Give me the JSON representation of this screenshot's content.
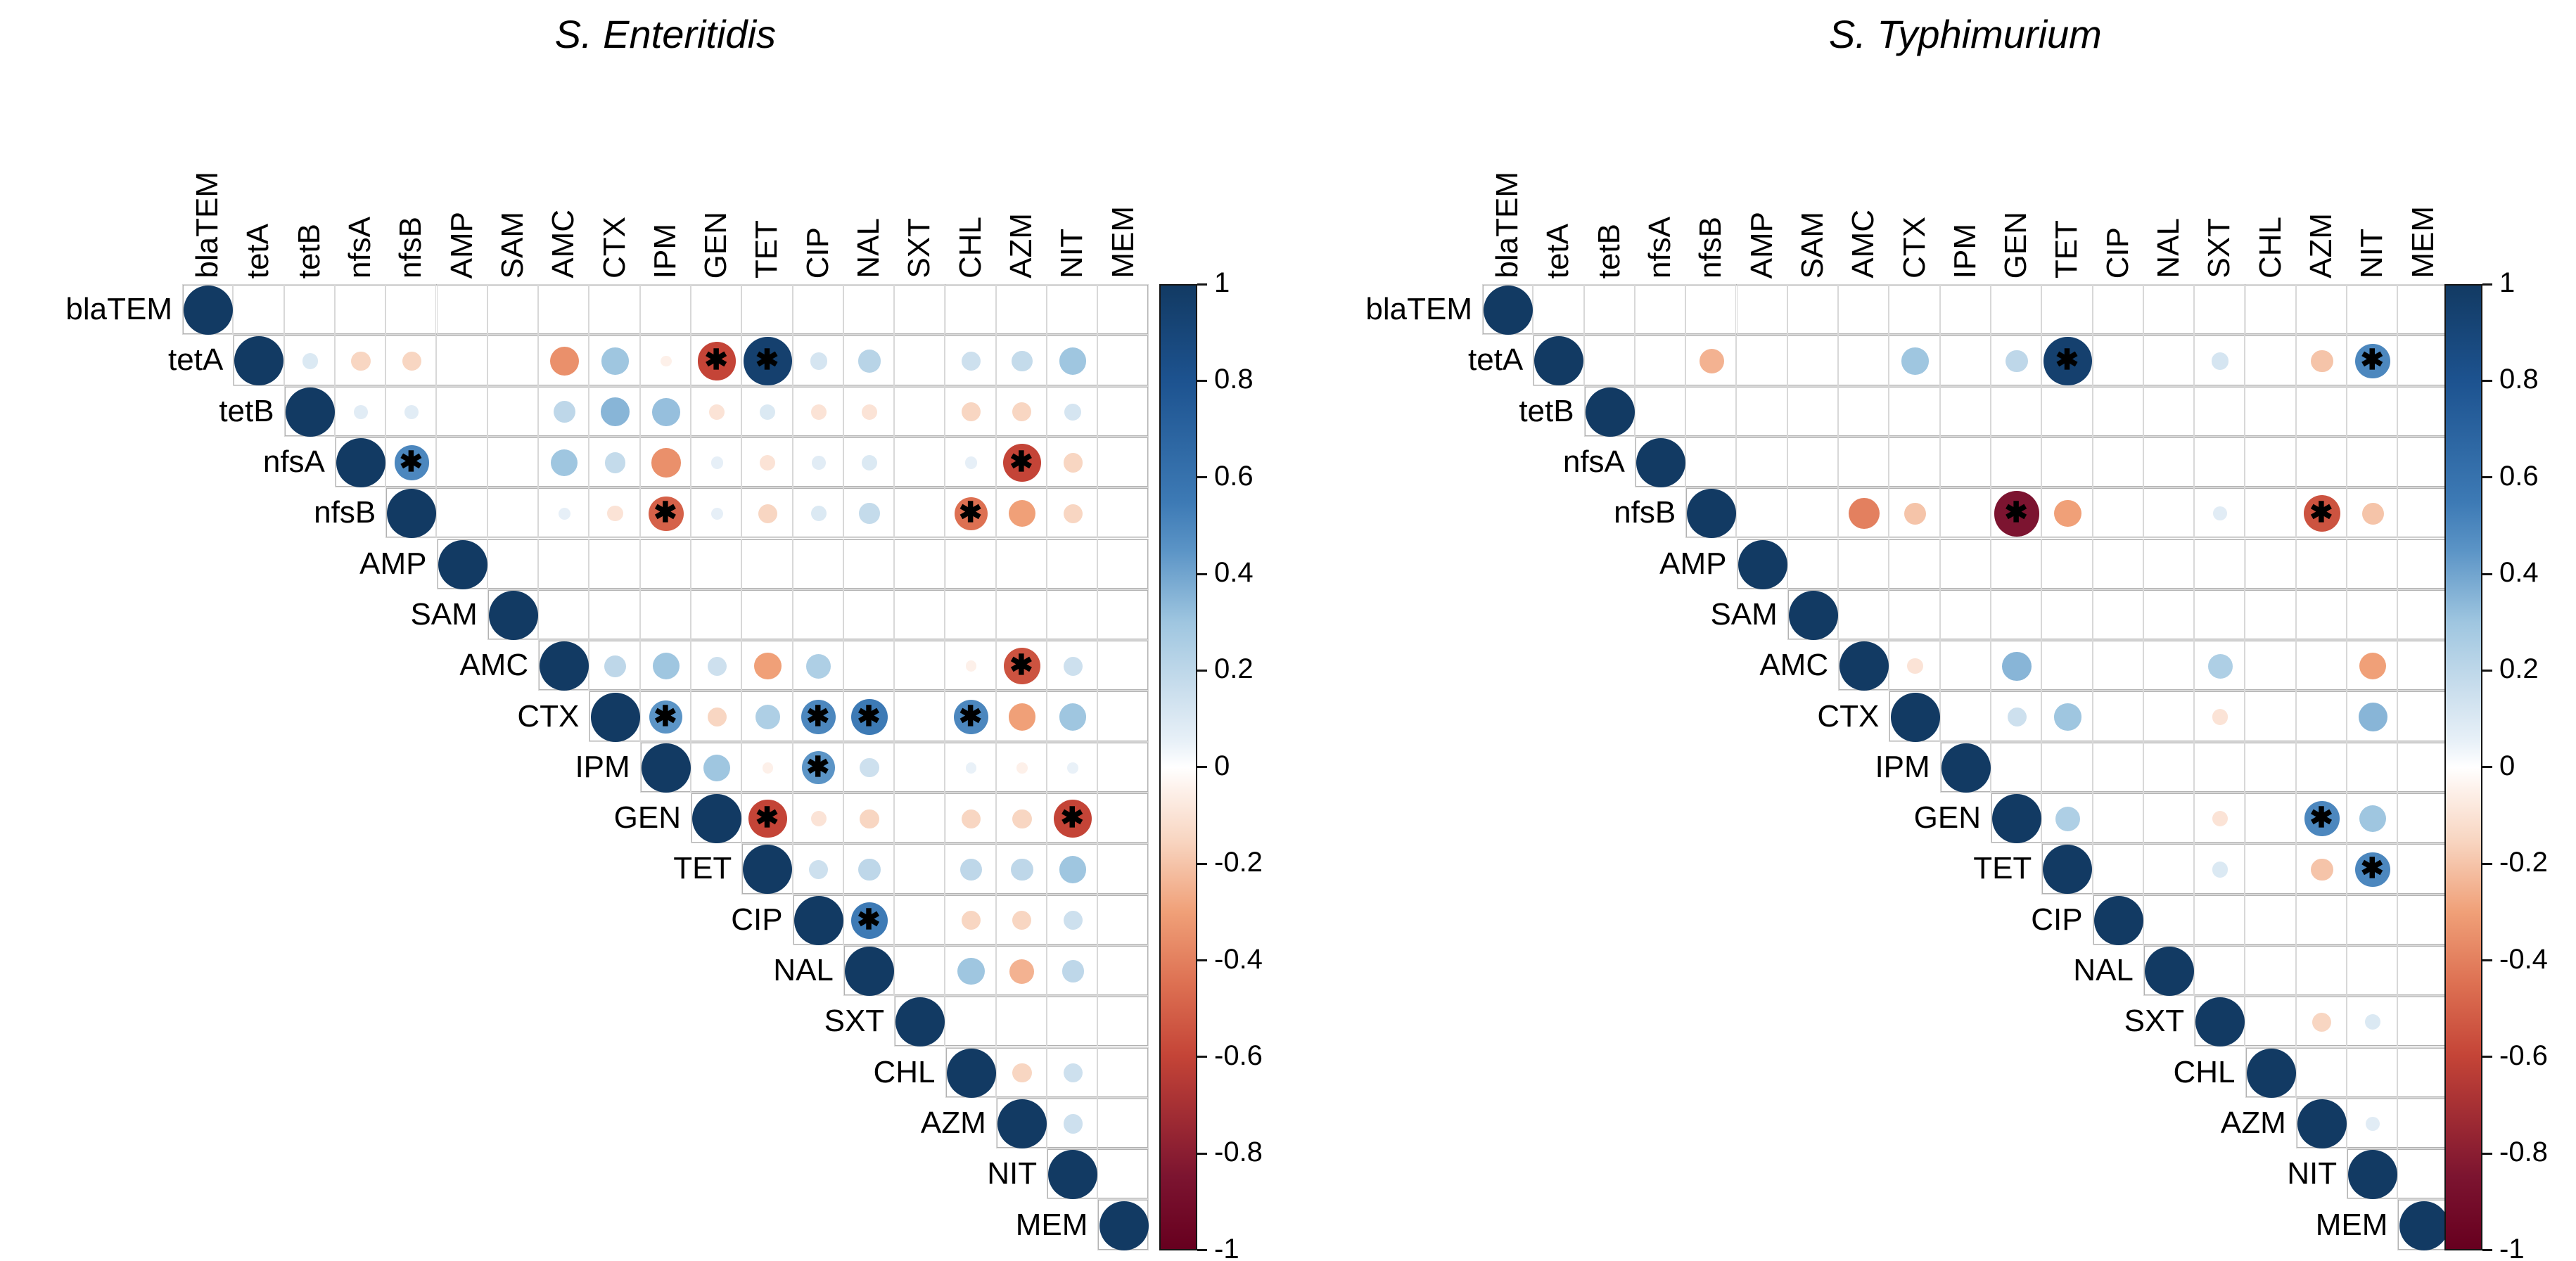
{
  "chart_data": [
    {
      "type": "heatmap",
      "subtype": "correlation-matrix-upper-triangle",
      "title": "S. Enteritidis",
      "variables": [
        "blaTEM",
        "tetA",
        "tetB",
        "nfsA",
        "nfsB",
        "AMP",
        "SAM",
        "AMC",
        "CTX",
        "IPM",
        "GEN",
        "TET",
        "CIP",
        "NAL",
        "SXT",
        "CHL",
        "AZM",
        "NIT",
        "MEM"
      ],
      "diagonal_r": 1,
      "cells": [
        [
          "tetA",
          "tetB",
          0.1,
          0
        ],
        [
          "tetA",
          "nfsA",
          -0.15,
          0
        ],
        [
          "tetA",
          "nfsB",
          -0.15,
          0
        ],
        [
          "tetA",
          "AMC",
          -0.35,
          0
        ],
        [
          "tetA",
          "CTX",
          0.3,
          0
        ],
        [
          "tetA",
          "IPM",
          -0.05,
          0
        ],
        [
          "tetA",
          "GEN",
          -0.6,
          1
        ],
        [
          "tetA",
          "TET",
          0.95,
          1
        ],
        [
          "tetA",
          "CIP",
          0.12,
          0
        ],
        [
          "tetA",
          "NAL",
          0.22,
          0
        ],
        [
          "tetA",
          "CHL",
          0.15,
          0
        ],
        [
          "tetA",
          "AZM",
          0.18,
          0
        ],
        [
          "tetA",
          "NIT",
          0.3,
          0
        ],
        [
          "tetB",
          "nfsA",
          0.08,
          0
        ],
        [
          "tetB",
          "nfsB",
          0.08,
          0
        ],
        [
          "tetB",
          "AMC",
          0.2,
          0
        ],
        [
          "tetB",
          "CTX",
          0.35,
          0
        ],
        [
          "tetB",
          "IPM",
          0.32,
          0
        ],
        [
          "tetB",
          "GEN",
          -0.1,
          0
        ],
        [
          "tetB",
          "TET",
          0.1,
          0
        ],
        [
          "tetB",
          "CIP",
          -0.1,
          0
        ],
        [
          "tetB",
          "NAL",
          -0.1,
          0
        ],
        [
          "tetB",
          "CHL",
          -0.15,
          0
        ],
        [
          "tetB",
          "AZM",
          -0.15,
          0
        ],
        [
          "tetB",
          "NIT",
          0.12,
          0
        ],
        [
          "nfsA",
          "nfsB",
          0.5,
          1
        ],
        [
          "nfsA",
          "AMC",
          0.3,
          0
        ],
        [
          "nfsA",
          "CTX",
          0.18,
          0
        ],
        [
          "nfsA",
          "IPM",
          -0.35,
          0
        ],
        [
          "nfsA",
          "GEN",
          0.06,
          0
        ],
        [
          "nfsA",
          "TET",
          -0.1,
          0
        ],
        [
          "nfsA",
          "CIP",
          0.08,
          0
        ],
        [
          "nfsA",
          "NAL",
          0.1,
          0
        ],
        [
          "nfsA",
          "CHL",
          0.06,
          0
        ],
        [
          "nfsA",
          "AZM",
          -0.6,
          1
        ],
        [
          "nfsA",
          "NIT",
          -0.15,
          0
        ],
        [
          "nfsB",
          "AMC",
          0.06,
          0
        ],
        [
          "nfsB",
          "CTX",
          -0.1,
          0
        ],
        [
          "nfsB",
          "IPM",
          -0.5,
          1
        ],
        [
          "nfsB",
          "GEN",
          0.06,
          0
        ],
        [
          "nfsB",
          "TET",
          -0.15,
          0
        ],
        [
          "nfsB",
          "CIP",
          0.1,
          0
        ],
        [
          "nfsB",
          "NAL",
          0.18,
          0
        ],
        [
          "nfsB",
          "CHL",
          -0.45,
          1
        ],
        [
          "nfsB",
          "AZM",
          -0.3,
          0
        ],
        [
          "nfsB",
          "NIT",
          -0.15,
          0
        ],
        [
          "AMC",
          "CTX",
          0.2,
          0
        ],
        [
          "AMC",
          "IPM",
          0.3,
          0
        ],
        [
          "AMC",
          "GEN",
          0.15,
          0
        ],
        [
          "AMC",
          "TET",
          -0.3,
          0
        ],
        [
          "AMC",
          "CIP",
          0.25,
          0
        ],
        [
          "AMC",
          "CHL",
          -0.05,
          0
        ],
        [
          "AMC",
          "AZM",
          -0.55,
          1
        ],
        [
          "AMC",
          "NIT",
          0.15,
          0
        ],
        [
          "CTX",
          "IPM",
          0.45,
          1
        ],
        [
          "CTX",
          "GEN",
          -0.15,
          0
        ],
        [
          "CTX",
          "TET",
          0.25,
          0
        ],
        [
          "CTX",
          "CIP",
          0.5,
          1
        ],
        [
          "CTX",
          "NAL",
          0.55,
          1
        ],
        [
          "CTX",
          "CHL",
          0.5,
          1
        ],
        [
          "CTX",
          "AZM",
          -0.3,
          0
        ],
        [
          "CTX",
          "NIT",
          0.3,
          0
        ],
        [
          "IPM",
          "GEN",
          0.3,
          0
        ],
        [
          "IPM",
          "TET",
          -0.05,
          0
        ],
        [
          "IPM",
          "CIP",
          0.45,
          1
        ],
        [
          "IPM",
          "NAL",
          0.15,
          0
        ],
        [
          "IPM",
          "CHL",
          0.05,
          0
        ],
        [
          "IPM",
          "AZM",
          -0.05,
          0
        ],
        [
          "IPM",
          "NIT",
          0.05,
          0
        ],
        [
          "GEN",
          "TET",
          -0.6,
          1
        ],
        [
          "GEN",
          "CIP",
          -0.1,
          0
        ],
        [
          "GEN",
          "NAL",
          -0.15,
          0
        ],
        [
          "GEN",
          "CHL",
          -0.15,
          0
        ],
        [
          "GEN",
          "AZM",
          -0.15,
          0
        ],
        [
          "GEN",
          "NIT",
          -0.6,
          1
        ],
        [
          "TET",
          "CIP",
          0.15,
          0
        ],
        [
          "TET",
          "NAL",
          0.2,
          0
        ],
        [
          "TET",
          "CHL",
          0.2,
          0
        ],
        [
          "TET",
          "AZM",
          0.2,
          0
        ],
        [
          "TET",
          "NIT",
          0.3,
          0
        ],
        [
          "CIP",
          "NAL",
          0.55,
          1
        ],
        [
          "CIP",
          "CHL",
          -0.15,
          0
        ],
        [
          "CIP",
          "AZM",
          -0.15,
          0
        ],
        [
          "CIP",
          "NIT",
          0.15,
          0
        ],
        [
          "NAL",
          "CHL",
          0.3,
          0
        ],
        [
          "NAL",
          "AZM",
          -0.25,
          0
        ],
        [
          "NAL",
          "NIT",
          0.2,
          0
        ],
        [
          "CHL",
          "AZM",
          -0.15,
          0
        ],
        [
          "CHL",
          "NIT",
          0.15,
          0
        ],
        [
          "AZM",
          "NIT",
          0.15,
          0
        ]
      ]
    },
    {
      "type": "heatmap",
      "subtype": "correlation-matrix-upper-triangle",
      "title": "S. Typhimurium",
      "variables": [
        "blaTEM",
        "tetA",
        "tetB",
        "nfsA",
        "nfsB",
        "AMP",
        "SAM",
        "AMC",
        "CTX",
        "IPM",
        "GEN",
        "TET",
        "CIP",
        "NAL",
        "SXT",
        "CHL",
        "AZM",
        "NIT",
        "MEM"
      ],
      "diagonal_r": 1,
      "cells": [
        [
          "tetA",
          "nfsB",
          -0.25,
          0
        ],
        [
          "tetA",
          "CTX",
          0.3,
          0
        ],
        [
          "tetA",
          "GEN",
          0.2,
          0
        ],
        [
          "tetA",
          "TET",
          0.95,
          1
        ],
        [
          "tetA",
          "SXT",
          0.12,
          0
        ],
        [
          "tetA",
          "AZM",
          -0.2,
          0
        ],
        [
          "tetA",
          "NIT",
          0.5,
          1
        ],
        [
          "nfsB",
          "AMC",
          -0.4,
          0
        ],
        [
          "nfsB",
          "CTX",
          -0.2,
          0
        ],
        [
          "nfsB",
          "GEN",
          -0.85,
          1
        ],
        [
          "nfsB",
          "TET",
          -0.3,
          0
        ],
        [
          "nfsB",
          "SXT",
          0.08,
          0
        ],
        [
          "nfsB",
          "AZM",
          -0.55,
          1
        ],
        [
          "nfsB",
          "NIT",
          -0.2,
          0
        ],
        [
          "AMC",
          "CTX",
          -0.1,
          0
        ],
        [
          "AMC",
          "GEN",
          0.35,
          0
        ],
        [
          "AMC",
          "SXT",
          0.25,
          0
        ],
        [
          "AMC",
          "NIT",
          -0.3,
          0
        ],
        [
          "CTX",
          "GEN",
          0.15,
          0
        ],
        [
          "CTX",
          "TET",
          0.3,
          0
        ],
        [
          "CTX",
          "SXT",
          -0.1,
          0
        ],
        [
          "CTX",
          "NIT",
          0.35,
          0
        ],
        [
          "GEN",
          "TET",
          0.25,
          0
        ],
        [
          "GEN",
          "SXT",
          -0.1,
          0
        ],
        [
          "GEN",
          "AZM",
          0.5,
          1
        ],
        [
          "GEN",
          "NIT",
          0.3,
          0
        ],
        [
          "TET",
          "SXT",
          0.1,
          0
        ],
        [
          "TET",
          "AZM",
          -0.2,
          0
        ],
        [
          "TET",
          "NIT",
          0.5,
          1
        ],
        [
          "SXT",
          "AZM",
          -0.15,
          0
        ],
        [
          "SXT",
          "NIT",
          0.1,
          0
        ],
        [
          "AZM",
          "NIT",
          0.08,
          0
        ]
      ]
    }
  ],
  "significance_marker": "✱",
  "colorbar": {
    "ticks": [
      "1",
      "0.8",
      "0.6",
      "0.4",
      "0.2",
      "0",
      "-0.2",
      "-0.4",
      "-0.6",
      "-0.8",
      "-1"
    ],
    "range": [
      -1,
      1
    ],
    "position": "right-of-each-matrix"
  },
  "colorscale": {
    "stops": [
      [
        -1.0,
        "#67001f"
      ],
      [
        -0.85,
        "#7c1430"
      ],
      [
        -0.6,
        "#c44437"
      ],
      [
        -0.45,
        "#dd7052"
      ],
      [
        -0.3,
        "#f0a078"
      ],
      [
        -0.15,
        "#f8d6c2"
      ],
      [
        -0.05,
        "#fdf0e9"
      ],
      [
        0.0,
        "#ffffff"
      ],
      [
        0.05,
        "#e9f1f8"
      ],
      [
        0.15,
        "#cde0ee"
      ],
      [
        0.3,
        "#9fc6e0"
      ],
      [
        0.45,
        "#5b94c6"
      ],
      [
        0.55,
        "#3d7ab5"
      ],
      [
        0.8,
        "#1d5390"
      ],
      [
        1.0,
        "#123a63"
      ]
    ],
    "grid_line_color": "#d8d8d8",
    "strip_border_color": "#b2b2b2",
    "colorbar_border_color": "#141414"
  }
}
